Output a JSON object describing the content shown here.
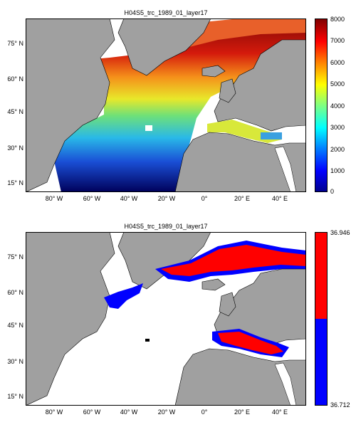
{
  "colors": {
    "land": "#a0a0a0",
    "ocean": "#ffffff",
    "coast": "#000000",
    "high": "#ff0000",
    "low": "#0000ff"
  },
  "top_map": {
    "title": "H04S5_trc_1989_01_layer17",
    "y_ticks": [
      "75° N",
      "60° N",
      "45° N",
      "30° N",
      "15° N"
    ],
    "x_ticks": [
      "80° W",
      "60° W",
      "40° W",
      "20° W",
      "0°",
      "20° E",
      "40° E"
    ],
    "colorbar": {
      "ticks": [
        "8000",
        "7000",
        "6000",
        "5000",
        "4000",
        "3000",
        "2000",
        "1000",
        "0"
      ],
      "range": [
        0,
        8000
      ],
      "colormap": "jet"
    }
  },
  "bottom_map": {
    "title": "H04S5_trc_1989_01_layer17",
    "y_ticks": [
      "75° N",
      "60° N",
      "45° N",
      "30° N",
      "15° N"
    ],
    "x_ticks": [
      "80° W",
      "60° W",
      "40° W",
      "20° W",
      "0°",
      "20° E",
      "40° E"
    ],
    "colorbar": {
      "max_label": "36.946",
      "min_label": "36.712",
      "range": [
        36.712,
        36.946
      ],
      "levels": [
        "red",
        "blue"
      ]
    }
  }
}
